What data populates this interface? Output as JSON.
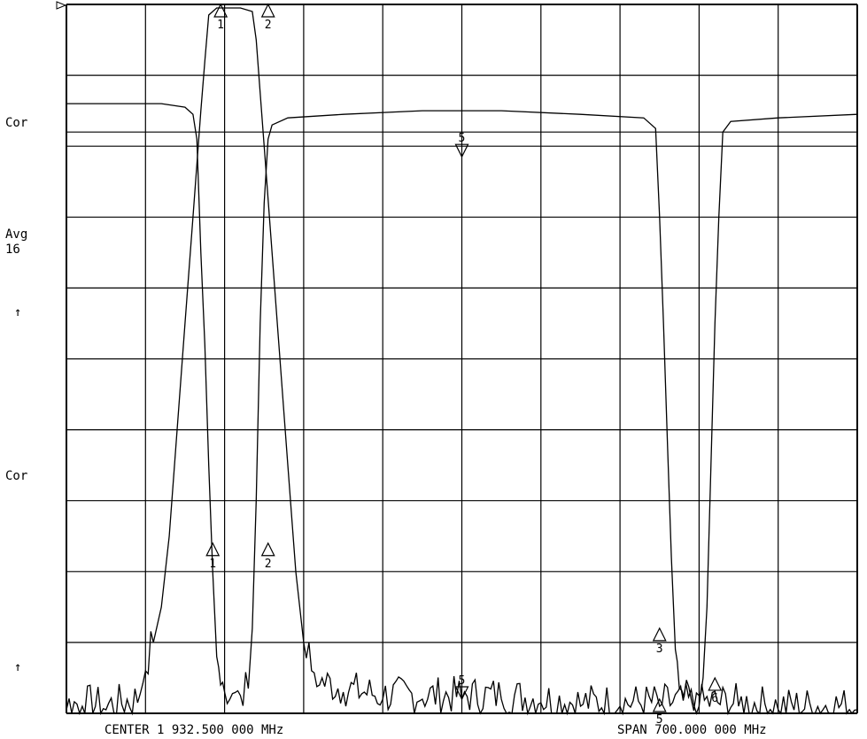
{
  "side_labels": {
    "cor_top": "Cor",
    "avg": "Avg",
    "avg_count": "16",
    "ref_arrow_top": "↑",
    "cor_bottom": "Cor",
    "ref_arrow_bottom": "↑"
  },
  "footer": {
    "center": "CENTER 1 932.500 000 MHz",
    "span": "SPAN  700.000 000 MHz"
  },
  "chart_data": {
    "type": "line",
    "instrument": "network analyzer",
    "x_units": "MHz",
    "center_mhz": 1932.5,
    "span_mhz": 700,
    "xlim": [
      1582.5,
      2282.5
    ],
    "grid": true,
    "grid_divisions": {
      "x": 10,
      "y": 10
    },
    "series": [
      {
        "key": "trace_rx",
        "points_div": [
          [
            0.0,
            8.6
          ],
          [
            1.2,
            8.6
          ],
          [
            1.5,
            8.55
          ],
          [
            1.6,
            8.45
          ],
          [
            1.65,
            8.1
          ],
          [
            1.7,
            6.5
          ],
          [
            1.75,
            5.2
          ],
          [
            1.8,
            3.5
          ],
          [
            1.85,
            2.0
          ],
          [
            1.9,
            0.8
          ],
          [
            1.95,
            0.4
          ],
          [
            2.0,
            0.3
          ],
          [
            2.1,
            0.28
          ],
          [
            2.2,
            0.25
          ],
          [
            2.3,
            0.35
          ],
          [
            2.35,
            1.2
          ],
          [
            2.4,
            3.0
          ],
          [
            2.45,
            5.5
          ],
          [
            2.5,
            7.2
          ],
          [
            2.55,
            8.1
          ],
          [
            2.6,
            8.3
          ],
          [
            2.8,
            8.4
          ],
          [
            3.5,
            8.45
          ],
          [
            4.5,
            8.5
          ],
          [
            5.5,
            8.5
          ],
          [
            6.5,
            8.45
          ],
          [
            7.3,
            8.4
          ],
          [
            7.45,
            8.25
          ],
          [
            7.5,
            7.0
          ],
          [
            7.55,
            5.5
          ],
          [
            7.6,
            3.8
          ],
          [
            7.65,
            2.2
          ],
          [
            7.7,
            0.9
          ],
          [
            7.75,
            0.35
          ],
          [
            7.9,
            0.2
          ],
          [
            8.0,
            0.25
          ],
          [
            8.05,
            0.5
          ],
          [
            8.1,
            1.5
          ],
          [
            8.15,
            3.5
          ],
          [
            8.2,
            5.5
          ],
          [
            8.25,
            7.0
          ],
          [
            8.3,
            8.2
          ],
          [
            8.4,
            8.35
          ],
          [
            9.0,
            8.4
          ],
          [
            10.0,
            8.45
          ]
        ]
      },
      {
        "key": "trace_tx",
        "points_div": [
          [
            0.0,
            0.05
          ],
          [
            0.2,
            0.1
          ],
          [
            0.5,
            0.05
          ],
          [
            0.9,
            0.15
          ],
          [
            1.0,
            0.6
          ],
          [
            1.1,
            1.0
          ],
          [
            1.2,
            1.5
          ],
          [
            1.3,
            2.5
          ],
          [
            1.4,
            4.0
          ],
          [
            1.5,
            5.5
          ],
          [
            1.6,
            7.0
          ],
          [
            1.7,
            8.5
          ],
          [
            1.75,
            9.2
          ],
          [
            1.8,
            9.85
          ],
          [
            1.9,
            9.95
          ],
          [
            2.0,
            9.95
          ],
          [
            2.1,
            9.95
          ],
          [
            2.2,
            9.95
          ],
          [
            2.35,
            9.9
          ],
          [
            2.4,
            9.5
          ],
          [
            2.5,
            8.0
          ],
          [
            2.6,
            6.5
          ],
          [
            2.7,
            5.0
          ],
          [
            2.8,
            3.5
          ],
          [
            2.9,
            2.0
          ],
          [
            3.0,
            1.0
          ],
          [
            3.1,
            0.6
          ],
          [
            3.2,
            0.4
          ],
          [
            3.5,
            0.3
          ],
          [
            4.0,
            0.2
          ],
          [
            4.5,
            0.2
          ],
          [
            5.0,
            0.2
          ],
          [
            5.5,
            0.2
          ],
          [
            6.0,
            0.15
          ],
          [
            6.5,
            0.1
          ],
          [
            7.0,
            0.1
          ],
          [
            7.5,
            0.1
          ],
          [
            8.0,
            0.1
          ],
          [
            8.5,
            0.1
          ],
          [
            9.0,
            0.05
          ],
          [
            10.0,
            0.05
          ]
        ]
      }
    ],
    "markers": [
      {
        "label": "1",
        "x_div": 1.95,
        "y_div": 9.9,
        "dir": "up"
      },
      {
        "label": "2",
        "x_div": 2.55,
        "y_div": 9.9,
        "dir": "up"
      },
      {
        "label": "5",
        "x_div": 5.0,
        "y_div": 7.95,
        "dir": "down"
      },
      {
        "label": "1",
        "x_div": 1.85,
        "y_div": 2.3,
        "dir": "up"
      },
      {
        "label": "2",
        "x_div": 2.55,
        "y_div": 2.3,
        "dir": "up"
      },
      {
        "label": "5",
        "x_div": 5.0,
        "y_div": 0.3,
        "dir": "down"
      },
      {
        "label": "3",
        "x_div": 7.5,
        "y_div": 1.1,
        "dir": "up"
      },
      {
        "label": "5",
        "x_div": 7.5,
        "y_div": 0.1,
        "dir": "up"
      },
      {
        "label": "6",
        "x_div": 8.2,
        "y_div": 0.4,
        "dir": "up"
      }
    ]
  }
}
